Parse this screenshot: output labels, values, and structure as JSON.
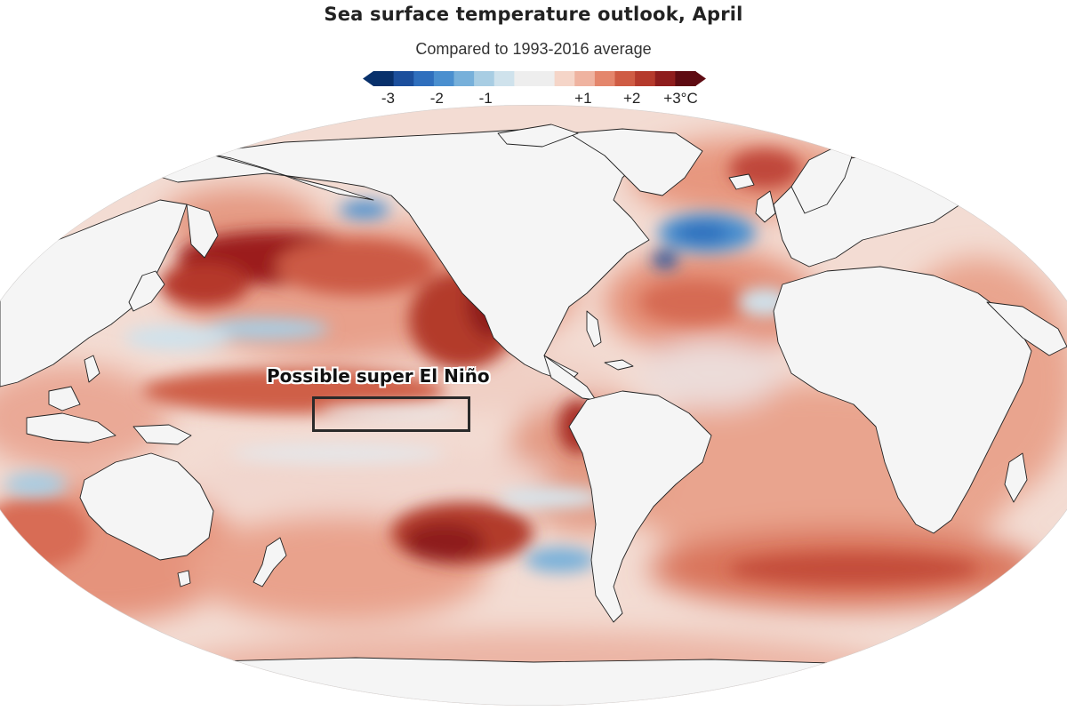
{
  "header": {
    "title": "Sea surface temperature outlook, April",
    "subtitle": "Compared to 1993-2016 average"
  },
  "legend": {
    "ticks": [
      {
        "label": "-3",
        "value": -3
      },
      {
        "label": "-2",
        "value": -2
      },
      {
        "label": "-1",
        "value": -1
      },
      {
        "label": "+1",
        "value": 1
      },
      {
        "label": "+2",
        "value": 2
      },
      {
        "label": "+3°C",
        "value": 3
      }
    ],
    "range": [
      -3.3,
      3.3
    ],
    "colors": [
      "#08306b",
      "#1c4f9c",
      "#2f6fbd",
      "#4a8fcf",
      "#77b0da",
      "#a8cde3",
      "#cfe2ec",
      "#eeeeee",
      "#eeeeee",
      "#f5d5c8",
      "#efb3a0",
      "#e4866c",
      "#cf5c44",
      "#b53a2c",
      "#8e1d1d",
      "#5e0b12"
    ]
  },
  "map": {
    "land_color": "#f5f5f5",
    "ocean_neutral": "#f1e6e2",
    "annotation": "Possible super El Niño"
  }
}
